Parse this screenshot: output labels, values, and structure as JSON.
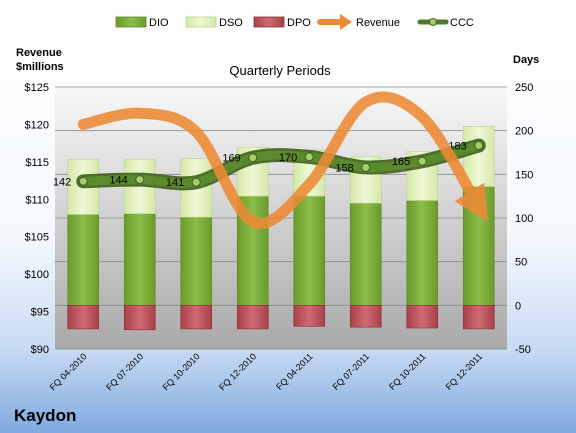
{
  "chart_data": {
    "type": "bar",
    "title": "Quarterly Periods",
    "company": "Kaydon",
    "left_axis": {
      "label_line1": "Revenue",
      "label_line2": "$millions",
      "ylim": [
        90,
        125
      ],
      "ticks": [
        "$90",
        "$95",
        "$100",
        "$105",
        "$110",
        "$115",
        "$120",
        "$125"
      ],
      "tick_values": [
        90,
        95,
        100,
        105,
        110,
        115,
        120,
        125
      ]
    },
    "right_axis": {
      "label": "Days",
      "ylim": [
        -50,
        250
      ],
      "ticks": [
        "-50",
        "0",
        "50",
        "100",
        "150",
        "200",
        "250"
      ],
      "tick_values": [
        -50,
        0,
        50,
        100,
        150,
        200,
        250
      ]
    },
    "categories": [
      "FQ 04-2010",
      "FQ 07-2010",
      "FQ 10-2010",
      "FQ 12-2010",
      "FQ 04-2011",
      "FQ 07-2011",
      "FQ 10-2011",
      "FQ 12-2011"
    ],
    "series": [
      {
        "name": "DIO",
        "axis": "right",
        "color": "#7aab3a",
        "values": [
          104,
          105,
          101,
          125,
          125,
          117,
          120,
          136
        ]
      },
      {
        "name": "DSO",
        "axis": "right",
        "color": "#e2f2bf",
        "values": [
          63,
          62,
          67,
          56,
          53,
          53,
          56,
          69
        ]
      },
      {
        "name": "DPO",
        "axis": "right",
        "color": "#c55a64",
        "values": [
          -27,
          -28,
          -27,
          -27,
          -24,
          -25,
          -26,
          -27
        ]
      },
      {
        "name": "Revenue",
        "axis": "left",
        "color": "#ed8a35",
        "values": [
          120,
          121.5,
          119,
          107,
          112,
          123,
          121,
          109
        ]
      },
      {
        "name": "CCC",
        "axis": "right",
        "color": "#4f7a28",
        "values": [
          142,
          144,
          141,
          169,
          170,
          158,
          165,
          183
        ],
        "labels": [
          "142",
          "144",
          "141",
          "169",
          "170",
          "158",
          "165",
          "183"
        ]
      }
    ],
    "grid": true,
    "legend_position": "top"
  }
}
